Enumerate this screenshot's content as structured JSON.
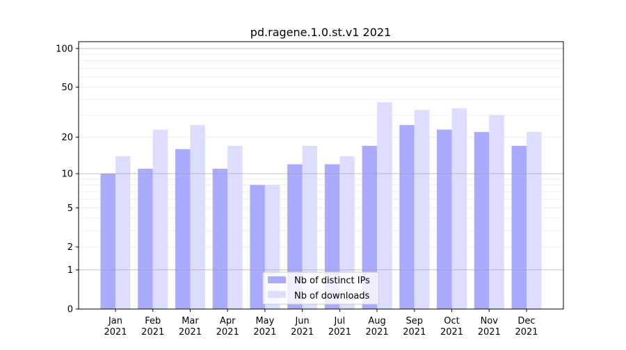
{
  "chart_data": {
    "type": "bar",
    "title": "pd.ragene.1.0.st.v1 2021",
    "xlabel": "",
    "ylabel": "",
    "yscale": "log(1+y)",
    "ylim": [
      0,
      113
    ],
    "yticks": [
      0,
      1,
      2,
      5,
      10,
      20,
      50,
      100
    ],
    "grid": true,
    "legend_position": "lower center",
    "categories": [
      "Jan\n2021",
      "Feb\n2021",
      "Mar\n2021",
      "Apr\n2021",
      "May\n2021",
      "Jun\n2021",
      "Jul\n2021",
      "Aug\n2021",
      "Sep\n2021",
      "Oct\n2021",
      "Nov\n2021",
      "Dec\n2021"
    ],
    "series": [
      {
        "name": "Nb of distinct IPs",
        "color": "#aaaaff",
        "values": [
          10,
          11,
          16,
          11,
          8,
          12,
          12,
          17,
          25,
          23,
          22,
          17
        ]
      },
      {
        "name": "Nb of downloads",
        "color": "#ddddff",
        "values": [
          14,
          23,
          25,
          17,
          8,
          17,
          14,
          38,
          33,
          34,
          30,
          22
        ]
      }
    ]
  }
}
